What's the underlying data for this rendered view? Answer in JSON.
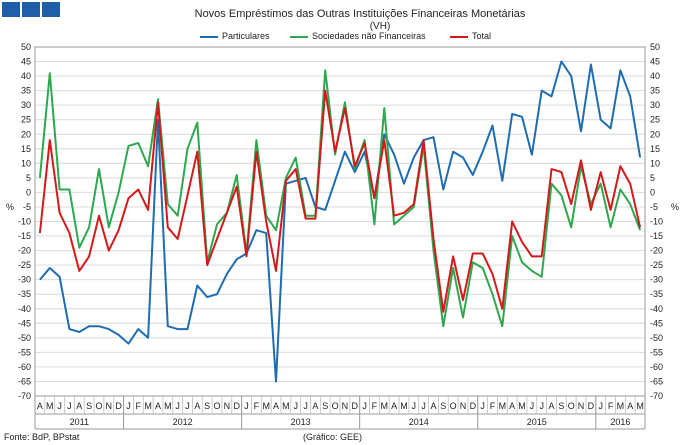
{
  "header_squares": [
    "square-1",
    "square-2",
    "square-3"
  ],
  "chart_data": {
    "type": "line",
    "title": "Novos Empréstimos das Outras Instituições Financeiras Monetárias",
    "subtitle": "(VH)",
    "ylabel_left": "%",
    "ylabel_right": "%",
    "ylim": [
      -70,
      50
    ],
    "yticks": [
      50,
      45,
      40,
      35,
      30,
      25,
      20,
      15,
      10,
      5,
      0,
      -5,
      -10,
      -15,
      -20,
      -25,
      -30,
      -35,
      -40,
      -45,
      -50,
      -55,
      -60,
      -65,
      -70
    ],
    "months": [
      "A",
      "M",
      "J",
      "J",
      "A",
      "S",
      "O",
      "N",
      "D",
      "J",
      "F",
      "M",
      "A",
      "M",
      "J",
      "J",
      "A",
      "S",
      "O",
      "N",
      "D",
      "J",
      "F",
      "M",
      "A",
      "M",
      "J",
      "J",
      "A",
      "S",
      "O",
      "N",
      "D",
      "J",
      "F",
      "M",
      "A",
      "M",
      "J",
      "J",
      "A",
      "S",
      "O",
      "N",
      "D",
      "J",
      "F",
      "M",
      "A",
      "M",
      "J",
      "J",
      "A",
      "S",
      "O",
      "N",
      "D",
      "J",
      "F",
      "M",
      "A",
      "M"
    ],
    "years": [
      {
        "label": "2011",
        "start": 0,
        "end": 9
      },
      {
        "label": "2012",
        "start": 9,
        "end": 21
      },
      {
        "label": "2013",
        "start": 21,
        "end": 33
      },
      {
        "label": "2014",
        "start": 33,
        "end": 45
      },
      {
        "label": "2015",
        "start": 45,
        "end": 57
      },
      {
        "label": "2016",
        "start": 57,
        "end": 62
      }
    ],
    "legend": [
      "Particulares",
      "Sociedades não Financeiras",
      "Total"
    ],
    "series": [
      {
        "name": "Particulares",
        "color": "#1f6cb0",
        "values": [
          -30,
          -26,
          -29,
          -47,
          -48,
          -46,
          -46,
          -47,
          -49,
          -52,
          -47,
          -50,
          25,
          -46,
          -47,
          -47,
          -32,
          -36,
          -35,
          -28,
          -23,
          -21,
          -13,
          -14,
          -65,
          3,
          4,
          5,
          -5,
          -6,
          4,
          14,
          7,
          14,
          -2,
          20,
          13,
          3,
          12,
          18,
          19,
          1,
          14,
          12,
          6,
          14,
          23,
          4,
          27,
          26,
          13,
          35,
          33,
          45,
          40,
          21,
          44,
          25,
          22,
          42,
          33,
          12
        ]
      },
      {
        "name": "Sociedades não Financeiras",
        "color": "#2ea84e",
        "values": [
          5,
          41,
          1,
          1,
          -19,
          -12,
          8,
          -12,
          0,
          16,
          17,
          9,
          32,
          -4,
          -8,
          15,
          24,
          -24,
          -11,
          -7,
          6,
          -21,
          18,
          -8,
          -13,
          5,
          12,
          -8,
          -8,
          42,
          13,
          31,
          8,
          18,
          -11,
          29,
          -11,
          -8,
          -5,
          16,
          -20,
          -46,
          -26,
          -43,
          -24,
          -26,
          -35,
          -46,
          -15,
          -24,
          -27,
          -29,
          3,
          -1,
          -12,
          9,
          -4,
          3,
          -12,
          1,
          -4,
          -13
        ]
      },
      {
        "name": "Total",
        "color": "#d31a1a",
        "values": [
          -14,
          18,
          -7,
          -14,
          -27,
          -22,
          -8,
          -20,
          -13,
          -2,
          1,
          -6,
          31,
          -12,
          -16,
          -1,
          14,
          -25,
          -16,
          -7,
          2,
          -22,
          14,
          -10,
          -27,
          4,
          8,
          -9,
          -9,
          35,
          14,
          29,
          9,
          17,
          -2,
          18,
          -8,
          -7,
          -4,
          18,
          -16,
          -41,
          -22,
          -37,
          -21,
          -21,
          -28,
          -40,
          -10,
          -17,
          -22,
          -22,
          8,
          7,
          -4,
          11,
          -6,
          7,
          -6,
          9,
          3,
          -12
        ]
      }
    ]
  },
  "footer": {
    "source": "Fonte: BdP, BPstat",
    "note": "(Gráfico: GEE)"
  }
}
